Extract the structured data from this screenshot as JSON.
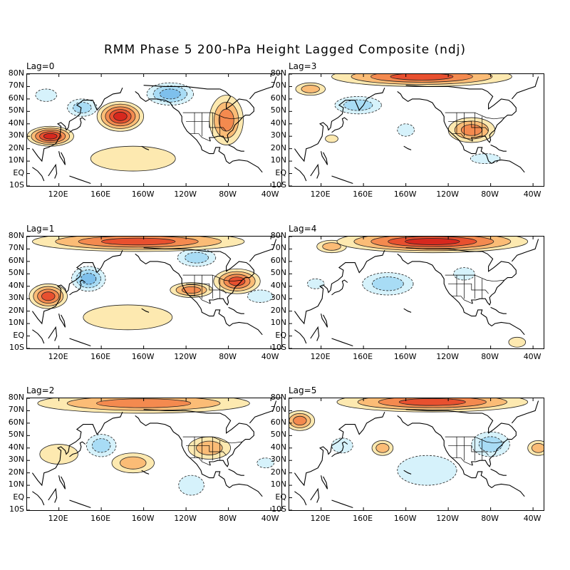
{
  "title": "RMM Phase 5 200-hPa Height Lagged Composite (ndj)",
  "lat_labels": [
    "80N",
    "70N",
    "60N",
    "50N",
    "40N",
    "30N",
    "20N",
    "10N",
    "EQ",
    "10S"
  ],
  "lon_labels": [
    "120E",
    "160E",
    "160W",
    "120W",
    "80W",
    "40W"
  ],
  "colors": {
    "pos1": "#fde9b0",
    "pos2": "#fbbc76",
    "pos3": "#f48a4f",
    "pos4": "#e8502f",
    "pos5": "#d7281e",
    "neg1": "#d6f2fb",
    "neg2": "#a8dcf5",
    "neg3": "#7ec0ec",
    "land": "#000000",
    "frame": "#000000"
  },
  "panels": [
    {
      "label": "Lag=0",
      "anomalies": [
        {
          "lon": 112,
          "lat": 30,
          "rx": 22,
          "ry": 8,
          "level": 5
        },
        {
          "lon": 178,
          "lat": 46,
          "rx": 22,
          "ry": 12,
          "level": 5
        },
        {
          "lon": 278,
          "lat": 43,
          "rx": 16,
          "ry": 20,
          "level": 3
        },
        {
          "lon": 190,
          "lat": 12,
          "rx": 40,
          "ry": 10,
          "level": 1
        },
        {
          "lon": 225,
          "lat": 64,
          "rx": 22,
          "ry": 9,
          "level": -3
        },
        {
          "lon": 142,
          "lat": 53,
          "rx": 14,
          "ry": 7,
          "level": -2
        },
        {
          "lon": 108,
          "lat": 63,
          "rx": 10,
          "ry": 5,
          "level": -1
        }
      ]
    },
    {
      "label": "Lag=3",
      "anomalies": [
        {
          "lon": 215,
          "lat": 78,
          "rx": 85,
          "ry": 8,
          "level": 4
        },
        {
          "lon": 262,
          "lat": 35,
          "rx": 22,
          "ry": 10,
          "level": 3
        },
        {
          "lon": 110,
          "lat": 68,
          "rx": 14,
          "ry": 5,
          "level": 2
        },
        {
          "lon": 130,
          "lat": 28,
          "rx": 6,
          "ry": 3,
          "level": 1
        },
        {
          "lon": 155,
          "lat": 55,
          "rx": 22,
          "ry": 7,
          "level": -2
        },
        {
          "lon": 200,
          "lat": 35,
          "rx": 8,
          "ry": 5,
          "level": -1
        },
        {
          "lon": 275,
          "lat": 12,
          "rx": 14,
          "ry": 4,
          "level": -1
        }
      ]
    },
    {
      "label": "Lag=1",
      "anomalies": [
        {
          "lon": 195,
          "lat": 76,
          "rx": 100,
          "ry": 8,
          "level": 4
        },
        {
          "lon": 110,
          "lat": 32,
          "rx": 18,
          "ry": 10,
          "level": 4
        },
        {
          "lon": 288,
          "lat": 44,
          "rx": 22,
          "ry": 10,
          "level": 4
        },
        {
          "lon": 245,
          "lat": 37,
          "rx": 20,
          "ry": 6,
          "level": 3
        },
        {
          "lon": 185,
          "lat": 15,
          "rx": 42,
          "ry": 10,
          "level": 1
        },
        {
          "lon": 148,
          "lat": 46,
          "rx": 16,
          "ry": 10,
          "level": -3
        },
        {
          "lon": 250,
          "lat": 63,
          "rx": 18,
          "ry": 7,
          "level": -2
        },
        {
          "lon": 310,
          "lat": 32,
          "rx": 12,
          "ry": 5,
          "level": -1
        }
      ]
    },
    {
      "label": "Lag=4",
      "anomalies": [
        {
          "lon": 225,
          "lat": 76,
          "rx": 90,
          "ry": 9,
          "level": 5
        },
        {
          "lon": 130,
          "lat": 72,
          "rx": 14,
          "ry": 5,
          "level": 2
        },
        {
          "lon": 183,
          "lat": 42,
          "rx": 24,
          "ry": 9,
          "level": -2
        },
        {
          "lon": 255,
          "lat": 50,
          "rx": 10,
          "ry": 5,
          "level": -1
        },
        {
          "lon": 115,
          "lat": 42,
          "rx": 8,
          "ry": 4,
          "level": -1
        },
        {
          "lon": 305,
          "lat": -5,
          "rx": 8,
          "ry": 4,
          "level": 1
        }
      ]
    },
    {
      "label": "Lag=2",
      "anomalies": [
        {
          "lon": 200,
          "lat": 76,
          "rx": 100,
          "ry": 8,
          "level": 3
        },
        {
          "lon": 190,
          "lat": 28,
          "rx": 20,
          "ry": 8,
          "level": 2
        },
        {
          "lon": 262,
          "lat": 40,
          "rx": 20,
          "ry": 9,
          "level": 2
        },
        {
          "lon": 120,
          "lat": 35,
          "rx": 18,
          "ry": 8,
          "level": 1
        },
        {
          "lon": 160,
          "lat": 42,
          "rx": 14,
          "ry": 9,
          "level": -2
        },
        {
          "lon": 245,
          "lat": 10,
          "rx": 12,
          "ry": 8,
          "level": -1
        },
        {
          "lon": 315,
          "lat": 28,
          "rx": 8,
          "ry": 4,
          "level": -1
        }
      ]
    },
    {
      "label": "Lag=5",
      "anomalies": [
        {
          "lon": 225,
          "lat": 77,
          "rx": 90,
          "ry": 8,
          "level": 4
        },
        {
          "lon": 100,
          "lat": 62,
          "rx": 14,
          "ry": 8,
          "level": 3
        },
        {
          "lon": 178,
          "lat": 40,
          "rx": 10,
          "ry": 6,
          "level": 2
        },
        {
          "lon": 325,
          "lat": 40,
          "rx": 10,
          "ry": 6,
          "level": 2
        },
        {
          "lon": 280,
          "lat": 43,
          "rx": 18,
          "ry": 10,
          "level": -2
        },
        {
          "lon": 140,
          "lat": 42,
          "rx": 10,
          "ry": 6,
          "level": -1
        },
        {
          "lon": 220,
          "lat": 22,
          "rx": 28,
          "ry": 12,
          "level": -1
        }
      ]
    }
  ]
}
